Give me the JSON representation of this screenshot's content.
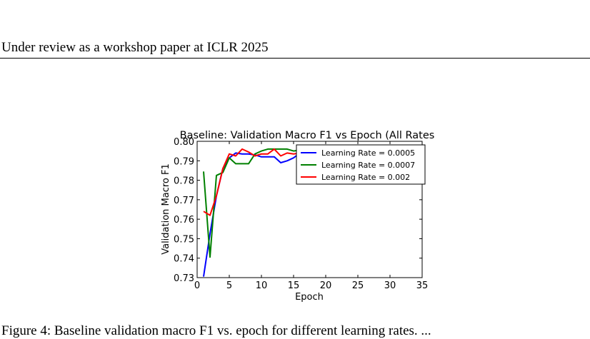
{
  "header": {
    "text": "Under review as a workshop paper at ICLR 2025"
  },
  "caption": {
    "text": "Figure 4: Baseline validation macro F1 vs. epoch for different learning rates. ..."
  },
  "chart_data": {
    "type": "line",
    "title": "Baseline: Validation Macro F1 vs Epoch (All Rates",
    "xlabel": "Epoch",
    "ylabel": "Validation Macro F1",
    "xlim": [
      0,
      35
    ],
    "ylim": [
      0.73,
      0.8
    ],
    "xticks": [
      0,
      5,
      10,
      15,
      20,
      25,
      30,
      35
    ],
    "yticks": [
      0.73,
      0.74,
      0.75,
      0.76,
      0.77,
      0.78,
      0.79,
      0.8
    ],
    "legend_position": "top-right",
    "grid": false,
    "series": [
      {
        "name": "Learning Rate = 0.0005",
        "color": "#0000ff",
        "x": [
          1,
          2,
          3,
          4,
          5,
          6,
          7,
          8,
          9,
          10,
          11,
          12,
          13,
          14,
          15,
          16,
          17,
          18,
          19,
          20,
          21,
          22,
          23,
          24,
          25,
          26,
          27,
          28,
          29,
          30,
          31,
          32,
          33,
          34,
          35
        ],
        "values": [
          0.7305,
          0.7525,
          0.772,
          0.786,
          0.7915,
          0.794,
          0.7935,
          0.7935,
          0.793,
          0.792,
          0.792,
          0.792,
          0.789,
          0.79,
          0.7915,
          0.794,
          0.795,
          0.7955,
          0.796,
          0.796,
          0.796,
          0.7962,
          0.7965,
          0.7965,
          0.797,
          0.797,
          0.797,
          0.797,
          0.797,
          0.797,
          0.7965,
          0.7965,
          0.796,
          0.796,
          0.7945
        ]
      },
      {
        "name": "Learning Rate = 0.0007",
        "color": "#008000",
        "x": [
          1,
          2,
          3,
          4,
          5,
          6,
          7,
          8,
          9,
          10,
          11,
          12,
          13,
          14,
          15,
          16,
          17,
          18,
          19,
          20,
          21,
          22,
          23,
          24,
          25,
          26,
          27,
          28,
          29,
          30,
          31,
          32,
          33,
          34,
          35
        ],
        "values": [
          0.7845,
          0.7405,
          0.7825,
          0.784,
          0.7915,
          0.7885,
          0.7885,
          0.7885,
          0.7935,
          0.795,
          0.796,
          0.796,
          0.796,
          0.796,
          0.795,
          0.7955,
          0.796,
          0.7965,
          0.7965,
          0.797,
          0.797,
          0.797,
          0.797,
          0.7975,
          0.7975,
          0.7975,
          0.798,
          0.798,
          0.7975,
          0.798,
          0.7975,
          0.7975,
          0.797,
          0.7975,
          0.798
        ]
      },
      {
        "name": "Learning Rate = 0.002",
        "color": "#ff0000",
        "x": [
          1,
          2,
          3,
          4,
          5,
          6,
          7,
          8,
          9,
          10,
          11,
          12,
          13,
          14,
          15,
          16,
          17,
          18,
          19,
          20,
          21,
          22,
          23,
          24,
          25,
          26,
          27,
          28,
          29,
          30,
          31,
          32,
          33,
          34,
          35
        ],
        "values": [
          0.764,
          0.762,
          0.772,
          0.786,
          0.7935,
          0.7925,
          0.796,
          0.7945,
          0.7925,
          0.7935,
          0.7935,
          0.796,
          0.7925,
          0.794,
          0.7935,
          0.794,
          0.7945,
          0.795,
          0.796,
          0.796,
          0.797,
          0.7965,
          0.7975,
          0.797,
          0.798,
          0.798,
          0.7975,
          0.7975,
          0.7975,
          0.7975,
          0.7975,
          0.798,
          0.7975,
          0.798,
          0.7975
        ]
      }
    ]
  }
}
